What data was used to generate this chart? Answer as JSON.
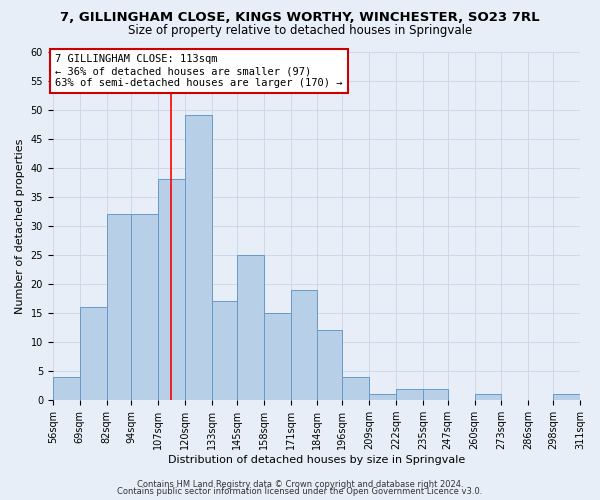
{
  "title": "7, GILLINGHAM CLOSE, KINGS WORTHY, WINCHESTER, SO23 7RL",
  "subtitle": "Size of property relative to detached houses in Springvale",
  "xlabel": "Distribution of detached houses by size in Springvale",
  "ylabel": "Number of detached properties",
  "bin_labels": [
    "56sqm",
    "69sqm",
    "82sqm",
    "94sqm",
    "107sqm",
    "120sqm",
    "133sqm",
    "145sqm",
    "158sqm",
    "171sqm",
    "184sqm",
    "196sqm",
    "209sqm",
    "222sqm",
    "235sqm",
    "247sqm",
    "260sqm",
    "273sqm",
    "286sqm",
    "298sqm",
    "311sqm"
  ],
  "bar_heights": [
    4,
    16,
    32,
    32,
    38,
    49,
    17,
    25,
    15,
    19,
    12,
    4,
    1,
    2,
    2,
    0,
    1,
    0,
    0,
    1
  ],
  "bin_edges": [
    56,
    69,
    82,
    94,
    107,
    120,
    133,
    145,
    158,
    171,
    184,
    196,
    209,
    222,
    235,
    247,
    260,
    273,
    286,
    298,
    311
  ],
  "property_size": 113,
  "bar_color": "#b8cfe8",
  "bar_edge_color": "#6699cc",
  "red_line_x": 113,
  "annotation_text": "7 GILLINGHAM CLOSE: 113sqm\n← 36% of detached houses are smaller (97)\n63% of semi-detached houses are larger (170) →",
  "annotation_box_color": "#ffffff",
  "annotation_box_edge": "#cc0000",
  "ylim": [
    0,
    60
  ],
  "yticks": [
    0,
    5,
    10,
    15,
    20,
    25,
    30,
    35,
    40,
    45,
    50,
    55,
    60
  ],
  "grid_color": "#c8d4e8",
  "background_color": "#e8eef8",
  "footer_line1": "Contains HM Land Registry data © Crown copyright and database right 2024.",
  "footer_line2": "Contains public sector information licensed under the Open Government Licence v3.0.",
  "title_fontsize": 9.5,
  "subtitle_fontsize": 8.5,
  "axis_label_fontsize": 8,
  "tick_fontsize": 7,
  "annotation_fontsize": 7.5,
  "footer_fontsize": 6
}
